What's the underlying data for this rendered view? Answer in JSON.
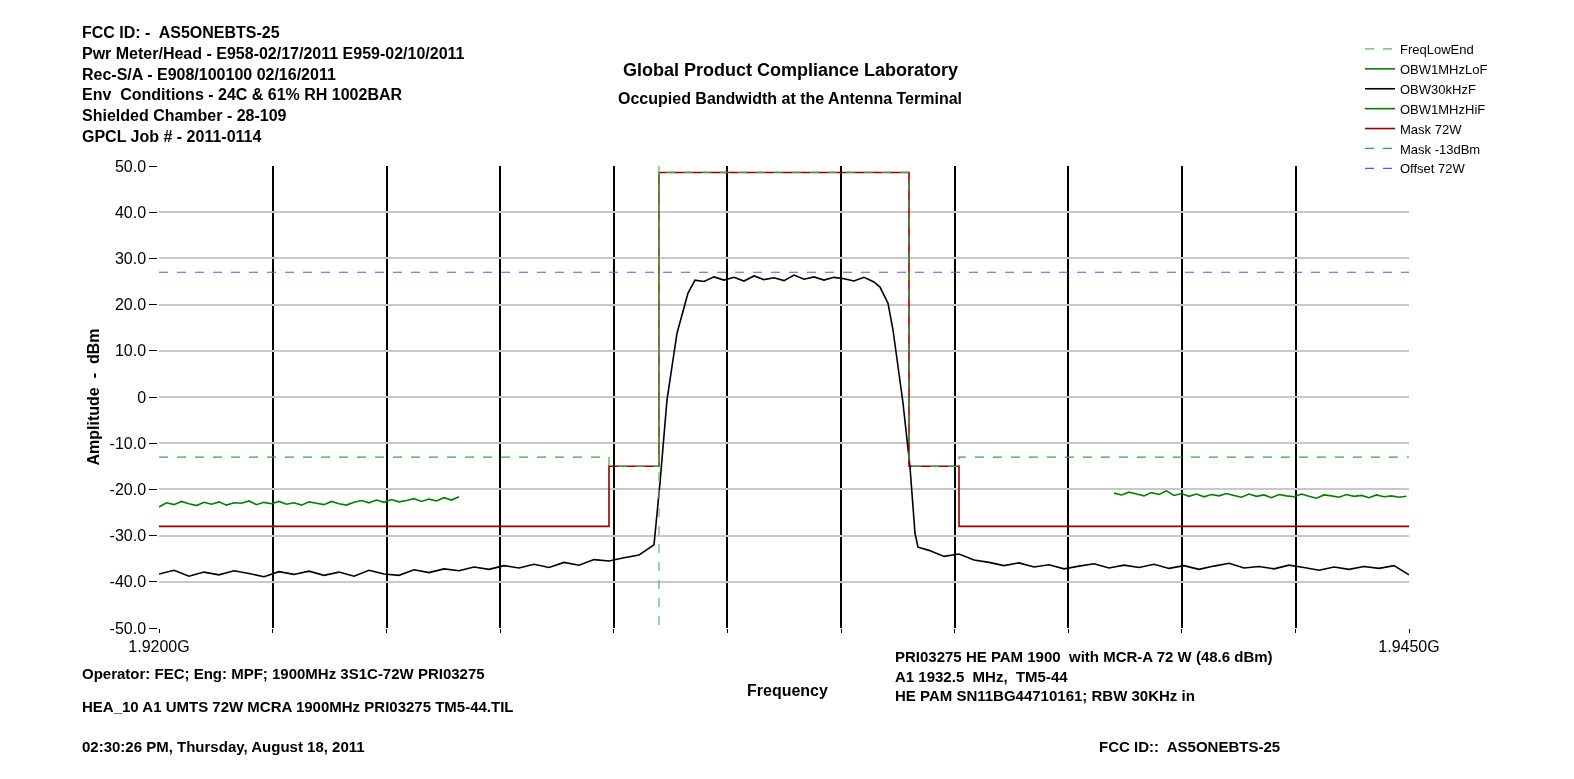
{
  "chart_data": {
    "type": "line",
    "title": "Global Product Compliance Laboratory",
    "subtitle": "Occupied Bandwidth at the Antenna Terminal",
    "xlabel": "Frequency",
    "ylabel": "Amplitude  -  dBm",
    "annotations": [
      "FCC ID: -  AS5ONEBTS-25\nPwr Meter/Head - E958-02/17/2011 E959-02/10/2011\nRec-S/A - E908/100100 02/16/2011\nEnv  Conditions - 24C & 61% RH 1002BAR\nShielded Chamber - 28-109\nGPCL Job # - 2011-0114",
      "Operator: FEC; Eng: MPF; 1900MHz 3S1C-72W PRI03275",
      "HEA_10 A1 UMTS 72W MCRA 1900MHz PRI03275 TM5-44.TIL",
      "02:30:26 PM, Thursday, August 18, 2011",
      "PRI03275 HE PAM 1900  with MCR-A 72 W (48.6 dBm)\nA1 1932.5  MHz,  TM5-44\nHE PAM SN11BG44710161; RBW 30KHz in",
      "FCC ID::  AS5ONEBTS-25"
    ],
    "xlim": [
      1.92,
      1.945
    ],
    "xticks": [
      {
        "value": 1.92,
        "label": "1.9200G"
      },
      {
        "value": 1.92227,
        "label": null
      },
      {
        "value": 1.92455,
        "label": null
      },
      {
        "value": 1.92682,
        "label": null
      },
      {
        "value": 1.92909,
        "label": null
      },
      {
        "value": 1.93136,
        "label": null
      },
      {
        "value": 1.93364,
        "label": null
      },
      {
        "value": 1.93591,
        "label": null
      },
      {
        "value": 1.93818,
        "label": null
      },
      {
        "value": 1.94045,
        "label": null
      },
      {
        "value": 1.94273,
        "label": null
      },
      {
        "value": 1.945,
        "label": "1.9450G"
      }
    ],
    "ylim": [
      -50,
      50
    ],
    "yticks": [
      {
        "value": 50,
        "label": "50.0"
      },
      {
        "value": 40,
        "label": "40.0"
      },
      {
        "value": 30,
        "label": "30.0"
      },
      {
        "value": 20,
        "label": "20.0"
      },
      {
        "value": 10,
        "label": "10.0"
      },
      0,
      {
        "value": -10,
        "label": "-10.0"
      },
      {
        "value": -20,
        "label": "-20.0"
      },
      {
        "value": -30,
        "label": "-30.0"
      },
      {
        "value": -40,
        "label": "-40.0"
      },
      {
        "value": -50,
        "label": "-50.0"
      }
    ],
    "grid": true,
    "legend": "top right",
    "series": [
      {
        "name": "FreqLowEnd",
        "color": "#55bb55",
        "line_style": "dashed",
        "x": [
          1.93,
          1.93
        ],
        "values": [
          50,
          -50
        ]
      },
      {
        "name": "OBW1MHzLoF",
        "color": "#008000",
        "x": [
          1.92,
          1.92015,
          1.9203,
          1.92045,
          1.9206,
          1.92075,
          1.9209,
          1.92105,
          1.9212,
          1.92135,
          1.9215,
          1.92165,
          1.9218,
          1.92195,
          1.9221,
          1.92225,
          1.9224,
          1.92255,
          1.9227,
          1.92285,
          1.923,
          1.92315,
          1.9233,
          1.92345,
          1.9236,
          1.92375,
          1.9239,
          1.92405,
          1.9242,
          1.92435,
          1.9245,
          1.92465,
          1.9248,
          1.92495,
          1.9251,
          1.92525,
          1.9254,
          1.92555,
          1.9257,
          1.92585,
          1.926
        ],
        "values": [
          -23.8,
          -22.9,
          -23.3,
          -22.6,
          -23.1,
          -23.5,
          -22.8,
          -23.2,
          -22.7,
          -23.4,
          -22.9,
          -23.0,
          -22.5,
          -23.3,
          -22.8,
          -23.1,
          -22.6,
          -23.2,
          -22.9,
          -23.4,
          -22.7,
          -23.0,
          -23.3,
          -22.6,
          -23.1,
          -23.4,
          -22.8,
          -22.4,
          -22.9,
          -22.3,
          -22.8,
          -22.2,
          -22.7,
          -22.4,
          -22.0,
          -22.6,
          -22.1,
          -22.5,
          -21.8,
          -22.3,
          -21.6
        ]
      },
      {
        "name": "OBW30kHzF",
        "color": "#000000",
        "x": [
          1.92,
          1.9203,
          1.9206,
          1.9209,
          1.9212,
          1.9215,
          1.9218,
          1.9221,
          1.9224,
          1.9227,
          1.923,
          1.9233,
          1.9236,
          1.9239,
          1.9242,
          1.9245,
          1.9248,
          1.9251,
          1.9254,
          1.9257,
          1.926,
          1.9263,
          1.9266,
          1.9269,
          1.9272,
          1.9275,
          1.9278,
          1.9281,
          1.9284,
          1.9287,
          1.929,
          1.9293,
          1.9296,
          1.9299,
          1.93002,
          1.93016,
          1.93036,
          1.93058,
          1.93072,
          1.9309,
          1.9311,
          1.9313,
          1.9315,
          1.9317,
          1.9319,
          1.9321,
          1.9323,
          1.9325,
          1.9327,
          1.9329,
          1.9331,
          1.9333,
          1.9335,
          1.9337,
          1.9339,
          1.9341,
          1.9343,
          1.93442,
          1.93458,
          1.93468,
          1.93488,
          1.93502,
          1.93512,
          1.93518,
          1.9354,
          1.9357,
          1.936,
          1.9363,
          1.9366,
          1.9369,
          1.9372,
          1.9375,
          1.9378,
          1.9381,
          1.9384,
          1.9387,
          1.939,
          1.9393,
          1.9396,
          1.9399,
          1.9402,
          1.9405,
          1.9408,
          1.9411,
          1.9414,
          1.9417,
          1.942,
          1.9423,
          1.9426,
          1.9429,
          1.9432,
          1.9435,
          1.9438,
          1.9441,
          1.9444,
          1.9447,
          1.945
        ],
        "values": [
          -38.3,
          -37.5,
          -38.8,
          -37.9,
          -38.5,
          -37.6,
          -38.2,
          -38.9,
          -37.8,
          -38.4,
          -37.7,
          -38.6,
          -37.9,
          -38.8,
          -37.5,
          -38.3,
          -38.6,
          -37.4,
          -38.0,
          -37.2,
          -37.6,
          -36.8,
          -37.3,
          -36.5,
          -37.0,
          -36.2,
          -36.9,
          -35.8,
          -36.4,
          -35.2,
          -35.5,
          -34.8,
          -34.2,
          -32.0,
          -18.6,
          -0.6,
          13.8,
          22.5,
          25.3,
          25.0,
          26.0,
          25.3,
          25.9,
          25.1,
          26.2,
          25.4,
          25.8,
          25.2,
          26.4,
          25.5,
          26.0,
          25.3,
          25.9,
          25.6,
          25.1,
          25.9,
          24.9,
          23.8,
          20.3,
          14.5,
          -1.3,
          -15.2,
          -29.5,
          -32.5,
          -33.2,
          -34.5,
          -34.0,
          -35.3,
          -35.8,
          -36.5,
          -35.9,
          -36.8,
          -36.3,
          -37.2,
          -36.6,
          -36.1,
          -37.0,
          -36.4,
          -36.9,
          -36.2,
          -37.1,
          -36.5,
          -37.3,
          -36.6,
          -36.0,
          -37.0,
          -36.7,
          -37.2,
          -36.4,
          -36.9,
          -37.5,
          -36.8,
          -37.3,
          -36.7,
          -37.1,
          -36.5,
          -38.5
        ]
      },
      {
        "name": "OBW1MHzHiF",
        "color": "#008000",
        "x": [
          1.9391,
          1.93925,
          1.9394,
          1.93955,
          1.9397,
          1.93985,
          1.94,
          1.94015,
          1.9403,
          1.94045,
          1.9406,
          1.94075,
          1.9409,
          1.94105,
          1.9412,
          1.94135,
          1.9415,
          1.94165,
          1.9418,
          1.94195,
          1.9421,
          1.94225,
          1.9424,
          1.94255,
          1.9427,
          1.94285,
          1.943,
          1.94315,
          1.9433,
          1.94345,
          1.9436,
          1.94375,
          1.9439,
          1.94405,
          1.9442,
          1.94435,
          1.9445,
          1.94465,
          1.9448,
          1.94495
        ],
        "values": [
          -20.8,
          -21.2,
          -20.6,
          -21.0,
          -21.4,
          -20.7,
          -21.1,
          -20.3,
          -21.3,
          -20.9,
          -21.5,
          -21.0,
          -21.6,
          -21.1,
          -21.4,
          -20.9,
          -21.3,
          -21.7,
          -21.0,
          -21.5,
          -21.2,
          -21.8,
          -21.1,
          -21.4,
          -21.6,
          -21.0,
          -21.5,
          -21.9,
          -21.2,
          -21.4,
          -21.7,
          -21.1,
          -21.5,
          -21.3,
          -21.8,
          -21.2,
          -21.6,
          -21.4,
          -21.7,
          -21.5
        ]
      },
      {
        "name": "Mask 72W",
        "type": "step",
        "color": "#990000",
        "x": [
          1.92,
          1.929,
          1.93,
          1.935,
          1.936,
          1.945
        ],
        "values": [
          -28,
          -15,
          48.6,
          -15,
          -28,
          -28
        ]
      },
      {
        "name": "Mask -13dBm",
        "type": "step",
        "color": "#33aa33",
        "line_style": "dashed",
        "x": [
          1.92,
          1.929,
          1.93,
          1.935,
          1.936,
          1.945
        ],
        "values": [
          -13,
          -15,
          48.6,
          -15,
          -13,
          -13
        ]
      },
      {
        "name": "Offset 72W",
        "color": "#5555ff",
        "line_style": "dashed",
        "x": [
          1.92,
          1.945
        ],
        "values": [
          27,
          27
        ]
      }
    ]
  }
}
